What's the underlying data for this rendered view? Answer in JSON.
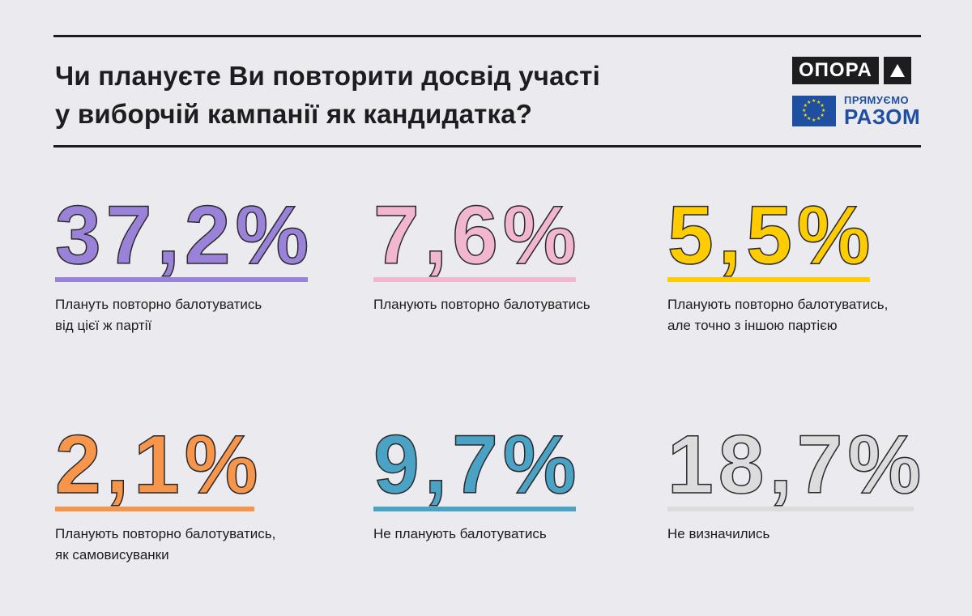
{
  "title_lines": [
    "Чи плануєте Ви повторити досвід участі",
    "у виборчій кампанії як кандидатка?"
  ],
  "logos": {
    "opora": "ОПОРА",
    "partner_small": "ПРЯМУЄМО",
    "partner_big": "РАЗОМ"
  },
  "stats": [
    {
      "value": "37,2%",
      "label_lines": [
        "Плануть повторно балотуватись",
        "від цієї ж партії"
      ],
      "color": "#9b82d9"
    },
    {
      "value": "7,6%",
      "label_lines": [
        "Планують повторно балотуватись"
      ],
      "color": "#f3b6d0"
    },
    {
      "value": "5,5%",
      "label_lines": [
        "Планують повторно балотуватись,",
        "але точно з іншою партією"
      ],
      "color": "#ffcc00"
    },
    {
      "value": "2,1%",
      "label_lines": [
        "Планують повторно балотуватись,",
        "як самовисуванки"
      ],
      "color": "#f7954a"
    },
    {
      "value": "9,7%",
      "label_lines": [
        "Не планують балотуватись"
      ],
      "color": "#4aa3c4"
    },
    {
      "value": "18,7%",
      "label_lines": [
        "Не визначились"
      ],
      "color": "#dcdcdc"
    }
  ],
  "chart_data": {
    "type": "table",
    "title": "Чи плануєте Ви повторити досвід участі у виборчій кампанії як кандидатка?",
    "categories": [
      "Планують повторно балотуватись від цієї ж партії",
      "Планують повторно балотуватись",
      "Планують повторно балотуватись, але точно з іншою партією",
      "Планують повторно балотуватись, як самовисуванки",
      "Не планують балотуватись",
      "Не визначились"
    ],
    "values": [
      37.2,
      7.6,
      5.5,
      2.1,
      9.7,
      18.7
    ],
    "unit": "%"
  }
}
